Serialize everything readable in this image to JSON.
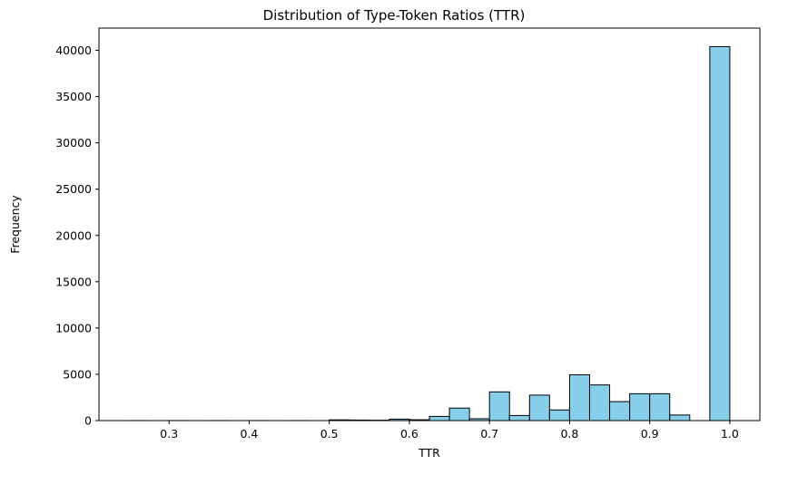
{
  "chart_data": {
    "type": "bar",
    "title": "Distribution of Type-Token Ratios (TTR)",
    "xlabel": "TTR",
    "ylabel": "Frequency",
    "xlim": [
      0.2125,
      1.0375
    ],
    "ylim": [
      0,
      42400
    ],
    "xticks": [
      0.3,
      0.4,
      0.5,
      0.6,
      0.7,
      0.8,
      0.9,
      1.0
    ],
    "xtick_labels": [
      "0.3",
      "0.4",
      "0.5",
      "0.6",
      "0.7",
      "0.8",
      "0.9",
      "1.0"
    ],
    "yticks": [
      0,
      5000,
      10000,
      15000,
      20000,
      25000,
      30000,
      35000,
      40000
    ],
    "ytick_labels": [
      "0",
      "5000",
      "10000",
      "15000",
      "20000",
      "25000",
      "30000",
      "35000",
      "40000"
    ],
    "bin_edges": [
      0.25,
      0.275,
      0.3,
      0.325,
      0.35,
      0.375,
      0.4,
      0.425,
      0.45,
      0.475,
      0.5,
      0.525,
      0.55,
      0.575,
      0.6,
      0.625,
      0.65,
      0.675,
      0.7,
      0.725,
      0.75,
      0.775,
      0.8,
      0.825,
      0.85,
      0.875,
      0.9,
      0.925,
      0.95,
      0.975,
      1.0
    ],
    "counts": [
      5,
      0,
      5,
      0,
      5,
      0,
      5,
      0,
      5,
      0,
      80,
      60,
      40,
      160,
      90,
      450,
      1350,
      200,
      3100,
      550,
      2750,
      1150,
      4950,
      3850,
      2050,
      2900,
      2900,
      600,
      0,
      40400
    ],
    "bar_color": "#87ceeb",
    "edge_color": "#000000",
    "grid": false
  }
}
